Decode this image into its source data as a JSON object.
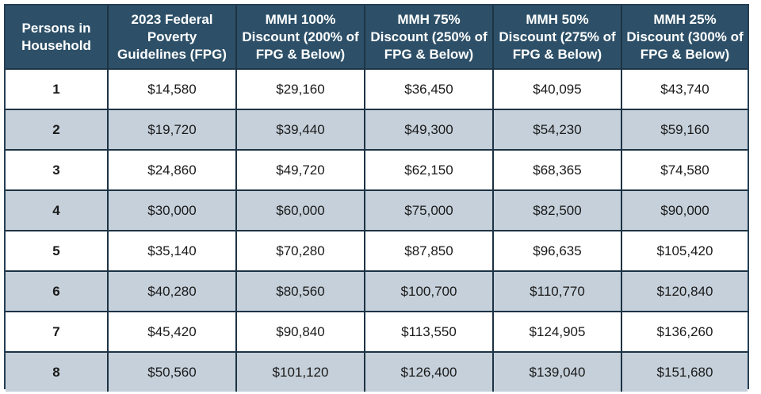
{
  "table": {
    "headers": [
      "Persons in Household",
      "2023 Federal Poverty Guidelines (FPG)",
      "MMH 100% Discount (200% of FPG & Below)",
      "MMH 75% Discount (250% of FPG & Below)",
      "MMH 50% Discount (275% of FPG & Below)",
      "MMH 25% Discount (300% of FPG & Below)"
    ],
    "rows": [
      [
        "1",
        "$14,580",
        "$29,160",
        "$36,450",
        "$40,095",
        "$43,740"
      ],
      [
        "2",
        "$19,720",
        "$39,440",
        "$49,300",
        "$54,230",
        "$59,160"
      ],
      [
        "3",
        "$24,860",
        "$49,720",
        "$62,150",
        "$68,365",
        "$74,580"
      ],
      [
        "4",
        "$30,000",
        "$60,000",
        "$75,000",
        "$82,500",
        "$90,000"
      ],
      [
        "5",
        "$35,140",
        "$70,280",
        "$87,850",
        "$96,635",
        "$105,420"
      ],
      [
        "6",
        "$40,280",
        "$80,560",
        "$100,700",
        "$110,770",
        "$120,840"
      ],
      [
        "7",
        "$45,420",
        "$90,840",
        "$113,550",
        "$124,905",
        "$136,260"
      ],
      [
        "8",
        "$50,560",
        "$101,120",
        "$126,400",
        "$139,040",
        "$151,680"
      ]
    ]
  },
  "colors": {
    "header_bg": "#2d5068",
    "border": "#1d3344",
    "row_alt": "#c5d0da",
    "row_plain": "#ffffff"
  }
}
